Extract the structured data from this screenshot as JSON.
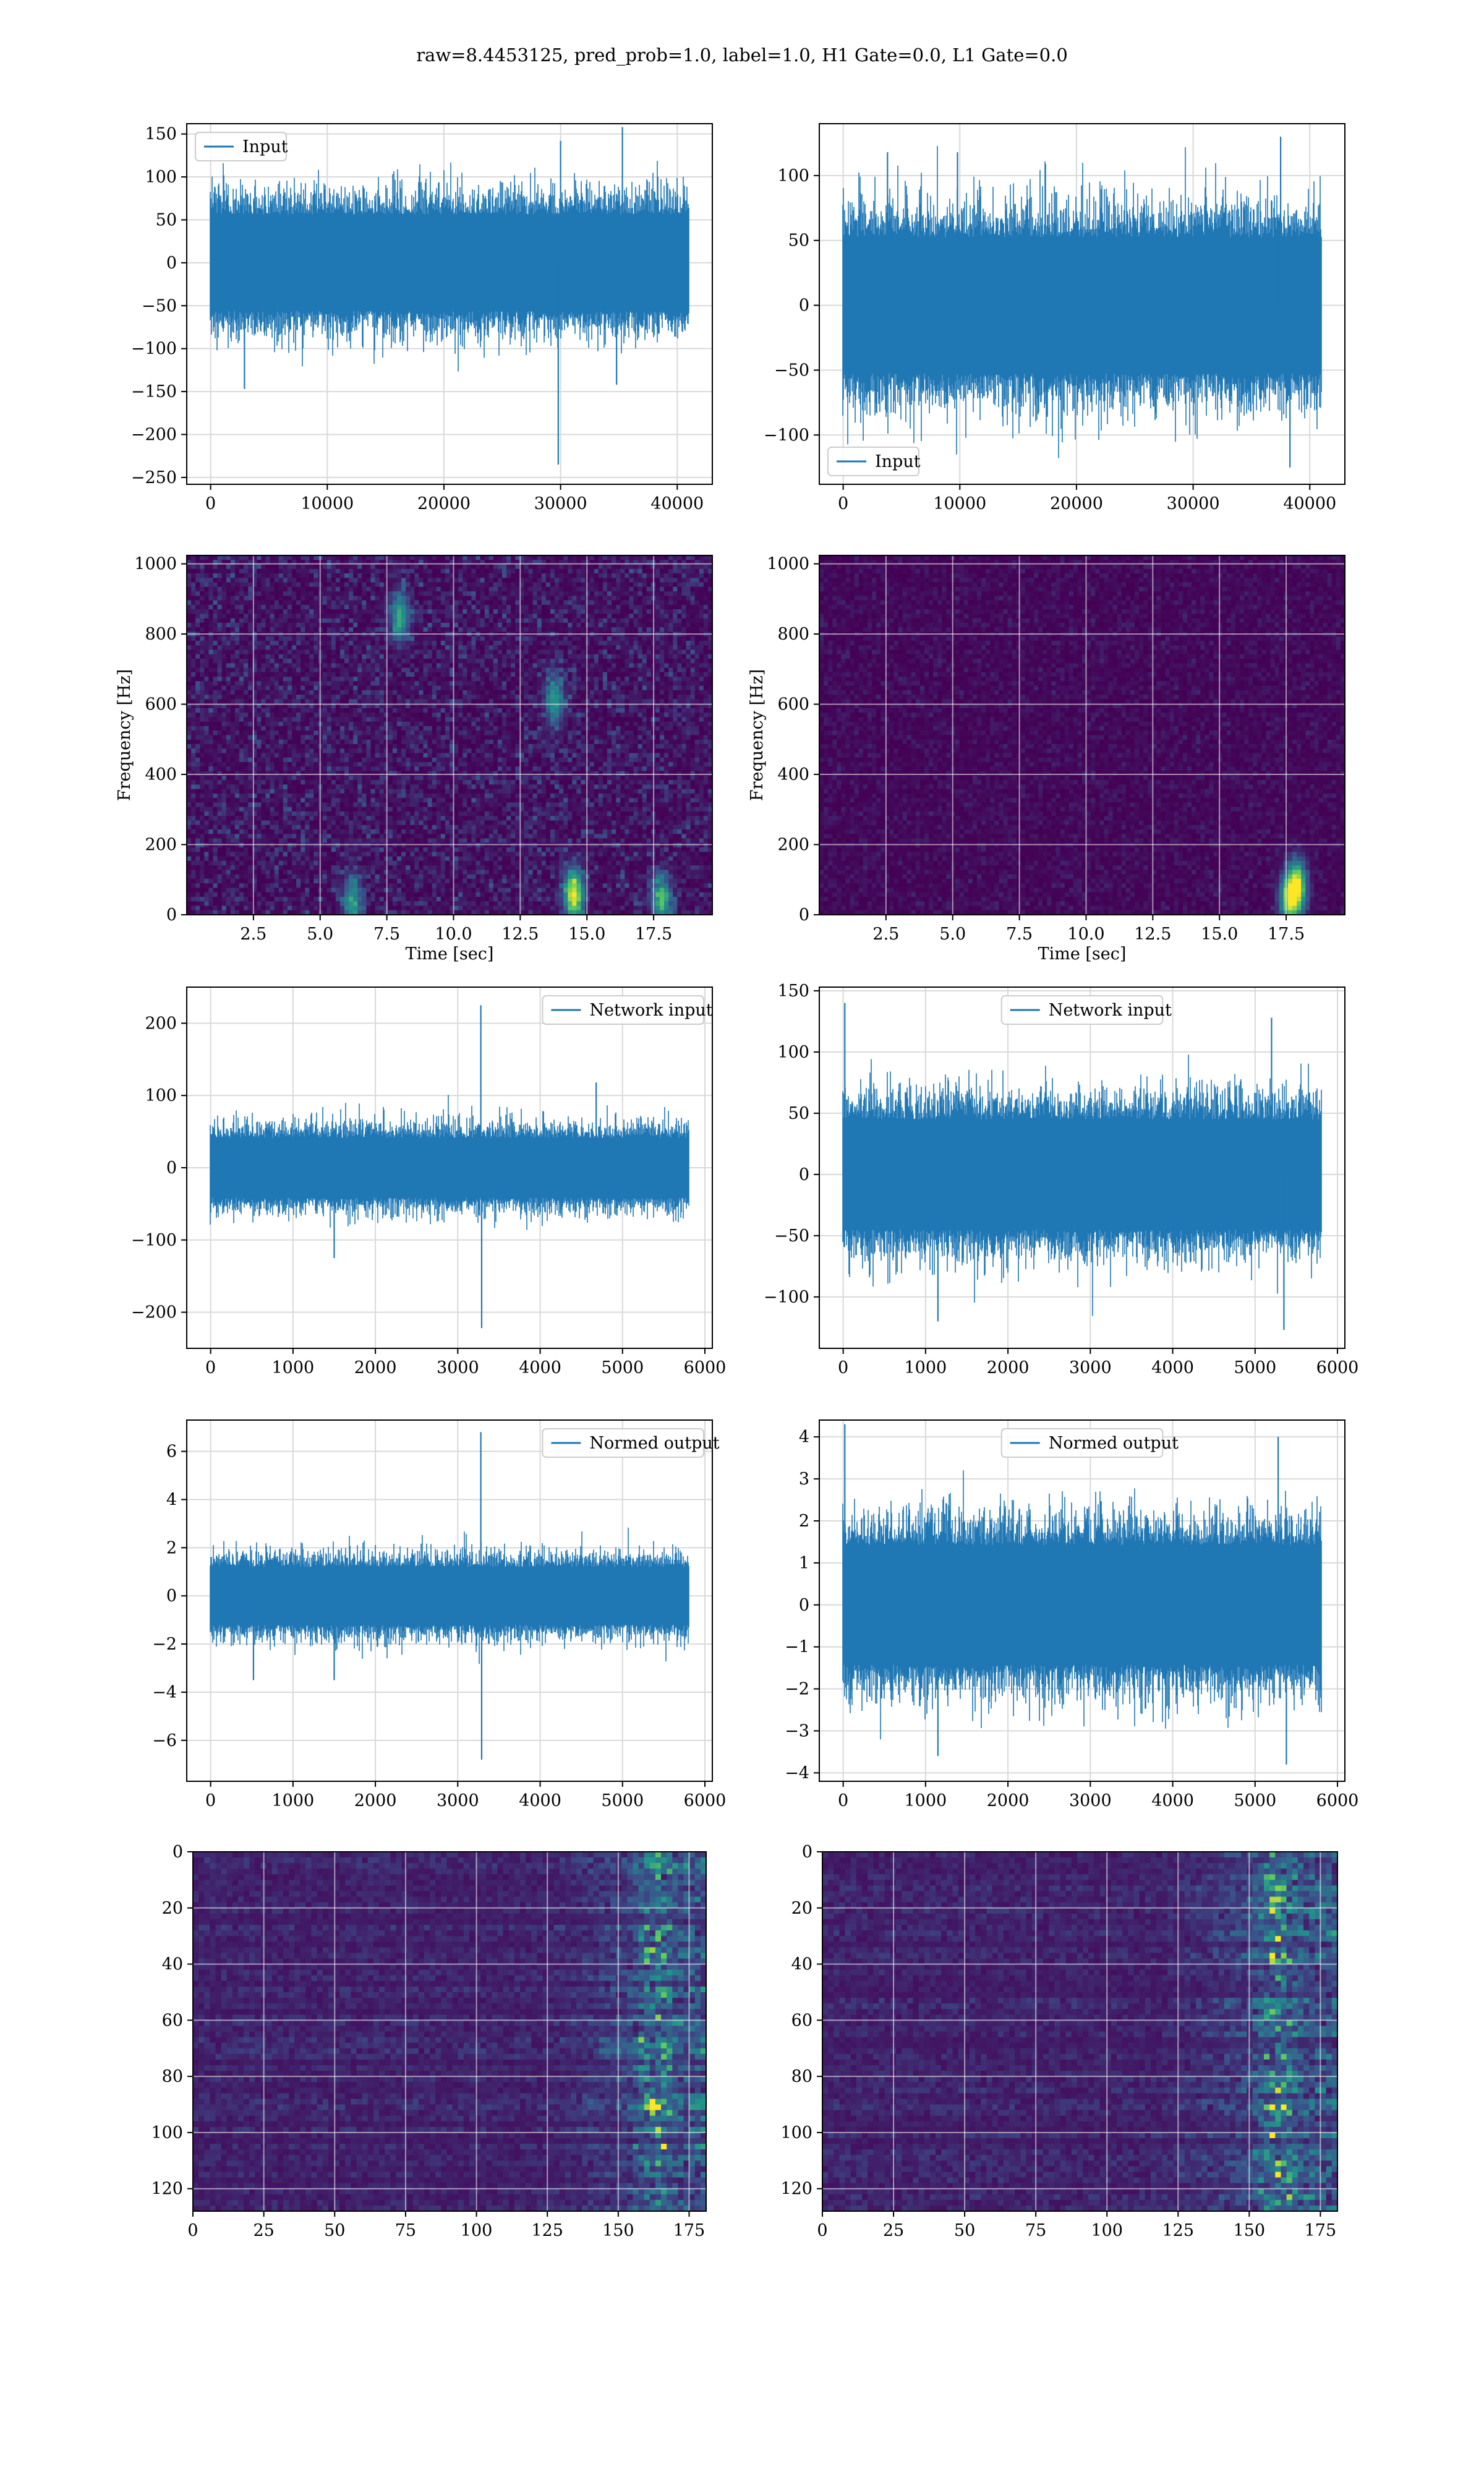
{
  "figure": {
    "suptitle": "raw=8.4453125, pred_prob=1.0, label=1.0, H1 Gate=0.0, L1 Gate=0.0"
  },
  "chart_data": [
    {
      "id": "input_h1",
      "type": "line",
      "series": [
        {
          "name": "Input",
          "color": "#1f77b4",
          "n": 40960,
          "amplitude_typical": 75,
          "spikes": [
            [
              29800,
              -235
            ],
            [
              35300,
              158
            ],
            [
              30000,
              142
            ],
            [
              2900,
              -147
            ],
            [
              34800,
              -142
            ]
          ]
        }
      ],
      "xlim": [
        -2048,
        43008
      ],
      "ylim": [
        -258,
        162
      ],
      "xticks": [
        "0",
        "10000",
        "20000",
        "30000",
        "40000"
      ],
      "xtick_values": [
        0,
        10000,
        20000,
        30000,
        40000
      ],
      "yticks": [
        "−250",
        "−200",
        "−150",
        "−100",
        "−50",
        "0",
        "50",
        "100",
        "150"
      ],
      "ytick_values": [
        -250,
        -200,
        -150,
        -100,
        -50,
        0,
        50,
        100,
        150
      ],
      "legend_loc": "upper left",
      "grid": true
    },
    {
      "id": "input_l1",
      "type": "line",
      "series": [
        {
          "name": "Input",
          "color": "#1f77b4",
          "n": 40960,
          "amplitude_typical": 70,
          "spikes": [
            [
              37500,
              130
            ],
            [
              38300,
              -125
            ],
            [
              9800,
              118
            ],
            [
              3800,
              118
            ]
          ]
        }
      ],
      "xlim": [
        -2048,
        43008
      ],
      "ylim": [
        -138,
        140
      ],
      "xticks": [
        "0",
        "10000",
        "20000",
        "30000",
        "40000"
      ],
      "xtick_values": [
        0,
        10000,
        20000,
        30000,
        40000
      ],
      "yticks": [
        "−100",
        "−50",
        "0",
        "50",
        "100"
      ],
      "ytick_values": [
        -100,
        -50,
        0,
        50,
        100
      ],
      "legend_loc": "lower left",
      "grid": true
    },
    {
      "id": "spec_h1",
      "type": "heatmap",
      "colormap": "viridis",
      "xlabel": "Time [sec]",
      "ylabel": "Frequency [Hz]",
      "xlim": [
        0,
        19.7
      ],
      "ylim": [
        0,
        1024
      ],
      "xticks": [
        "2.5",
        "5.0",
        "7.5",
        "10.0",
        "12.5",
        "15.0",
        "17.5"
      ],
      "xtick_values": [
        2.5,
        5.0,
        7.5,
        10.0,
        12.5,
        15.0,
        17.5
      ],
      "yticks": [
        "0",
        "200",
        "400",
        "600",
        "800",
        "1000"
      ],
      "ytick_values": [
        0,
        200,
        400,
        600,
        800,
        1000
      ],
      "background_level": 0.18,
      "hotspots": [
        [
          14.5,
          60,
          0.9
        ],
        [
          17.8,
          40,
          0.6
        ],
        [
          6.2,
          40,
          0.5
        ],
        [
          8.0,
          850,
          0.55
        ],
        [
          13.8,
          610,
          0.5
        ]
      ],
      "grid": true
    },
    {
      "id": "spec_l1",
      "type": "heatmap",
      "colormap": "viridis",
      "xlabel": "Time [sec]",
      "ylabel": "Frequency [Hz]",
      "xlim": [
        0,
        19.7
      ],
      "ylim": [
        0,
        1024
      ],
      "xticks": [
        "2.5",
        "5.0",
        "7.5",
        "10.0",
        "12.5",
        "15.0",
        "17.5"
      ],
      "xtick_values": [
        2.5,
        5.0,
        7.5,
        10.0,
        12.5,
        15.0,
        17.5
      ],
      "yticks": [
        "0",
        "200",
        "400",
        "600",
        "800",
        "1000"
      ],
      "ytick_values": [
        0,
        200,
        400,
        600,
        800,
        1000
      ],
      "background_level": 0.08,
      "hotspots": [
        [
          17.9,
          80,
          0.9
        ],
        [
          17.6,
          40,
          0.7
        ]
      ],
      "grid": true
    },
    {
      "id": "netin_h1",
      "type": "line",
      "series": [
        {
          "name": "Network input",
          "color": "#1f77b4",
          "n": 5800,
          "amplitude_typical": 55,
          "spikes": [
            [
              3280,
              225
            ],
            [
              3290,
              -222
            ],
            [
              4680,
              118
            ],
            [
              1500,
              -125
            ]
          ]
        }
      ],
      "xlim": [
        -290,
        6090
      ],
      "ylim": [
        -250,
        250
      ],
      "xticks": [
        "0",
        "1000",
        "2000",
        "3000",
        "4000",
        "5000",
        "6000"
      ],
      "xtick_values": [
        0,
        1000,
        2000,
        3000,
        4000,
        5000,
        6000
      ],
      "yticks": [
        "−200",
        "−100",
        "0",
        "100",
        "200"
      ],
      "ytick_values": [
        -200,
        -100,
        0,
        100,
        200
      ],
      "legend_loc": "upper right",
      "grid": true
    },
    {
      "id": "netin_l1",
      "type": "line",
      "series": [
        {
          "name": "Network input",
          "color": "#1f77b4",
          "n": 5800,
          "amplitude_typical": 60,
          "spikes": [
            [
              20,
              140
            ],
            [
              5350,
              -127
            ],
            [
              5200,
              128
            ],
            [
              1150,
              -120
            ]
          ]
        }
      ],
      "xlim": [
        -290,
        6090
      ],
      "ylim": [
        -142,
        153
      ],
      "xticks": [
        "0",
        "1000",
        "2000",
        "3000",
        "4000",
        "5000",
        "6000"
      ],
      "xtick_values": [
        0,
        1000,
        2000,
        3000,
        4000,
        5000,
        6000
      ],
      "yticks": [
        "−100",
        "−50",
        "0",
        "50",
        "100",
        "150"
      ],
      "ytick_values": [
        -100,
        -50,
        0,
        50,
        100,
        150
      ],
      "legend_loc": "upper center",
      "grid": true
    },
    {
      "id": "normout_h1",
      "type": "line",
      "series": [
        {
          "name": "Normed output",
          "color": "#1f77b4",
          "n": 5800,
          "amplitude_typical": 1.6,
          "spikes": [
            [
              3280,
              6.8
            ],
            [
              3290,
              -6.8
            ],
            [
              1500,
              -3.5
            ],
            [
              520,
              -3.5
            ]
          ]
        }
      ],
      "xlim": [
        -290,
        6090
      ],
      "ylim": [
        -7.7,
        7.3
      ],
      "xticks": [
        "0",
        "1000",
        "2000",
        "3000",
        "4000",
        "5000",
        "6000"
      ],
      "xtick_values": [
        0,
        1000,
        2000,
        3000,
        4000,
        5000,
        6000
      ],
      "yticks": [
        "−6",
        "−4",
        "−2",
        "0",
        "2",
        "4",
        "6"
      ],
      "ytick_values": [
        -6,
        -4,
        -2,
        0,
        2,
        4,
        6
      ],
      "legend_loc": "upper right",
      "grid": true
    },
    {
      "id": "normout_l1",
      "type": "line",
      "series": [
        {
          "name": "Normed output",
          "color": "#1f77b4",
          "n": 5800,
          "amplitude_typical": 1.9,
          "spikes": [
            [
              20,
              4.3
            ],
            [
              5380,
              -3.8
            ],
            [
              5280,
              4.0
            ],
            [
              1150,
              -3.6
            ]
          ]
        }
      ],
      "xlim": [
        -290,
        6090
      ],
      "ylim": [
        -4.2,
        4.4
      ],
      "xticks": [
        "0",
        "1000",
        "2000",
        "3000",
        "4000",
        "5000",
        "6000"
      ],
      "xtick_values": [
        0,
        1000,
        2000,
        3000,
        4000,
        5000,
        6000
      ],
      "yticks": [
        "−4",
        "−3",
        "−2",
        "−1",
        "0",
        "1",
        "2",
        "3",
        "4"
      ],
      "ytick_values": [
        -4,
        -3,
        -2,
        -1,
        0,
        1,
        2,
        3,
        4
      ],
      "legend_loc": "upper center",
      "grid": true
    },
    {
      "id": "feat_h1",
      "type": "heatmap",
      "colormap": "viridis",
      "xlim": [
        0,
        181
      ],
      "ylim": [
        128,
        0
      ],
      "xticks": [
        "0",
        "25",
        "50",
        "75",
        "100",
        "125",
        "150",
        "175"
      ],
      "xtick_values": [
        0,
        25,
        50,
        75,
        100,
        125,
        150,
        175
      ],
      "yticks": [
        "0",
        "20",
        "40",
        "60",
        "80",
        "100",
        "120"
      ],
      "ytick_values": [
        0,
        20,
        40,
        60,
        80,
        100,
        120
      ],
      "active_region_start": 125,
      "hot_column": 163,
      "grid": true
    },
    {
      "id": "feat_l1",
      "type": "heatmap",
      "colormap": "viridis",
      "xlim": [
        0,
        181
      ],
      "ylim": [
        128,
        0
      ],
      "xticks": [
        "0",
        "25",
        "50",
        "75",
        "100",
        "125",
        "150",
        "175"
      ],
      "xtick_values": [
        0,
        25,
        50,
        75,
        100,
        125,
        150,
        175
      ],
      "yticks": [
        "0",
        "20",
        "40",
        "60",
        "80",
        "100",
        "120"
      ],
      "ytick_values": [
        0,
        20,
        40,
        60,
        80,
        100,
        120
      ],
      "active_region_start": 118,
      "hot_column": 160,
      "grid": true
    }
  ]
}
